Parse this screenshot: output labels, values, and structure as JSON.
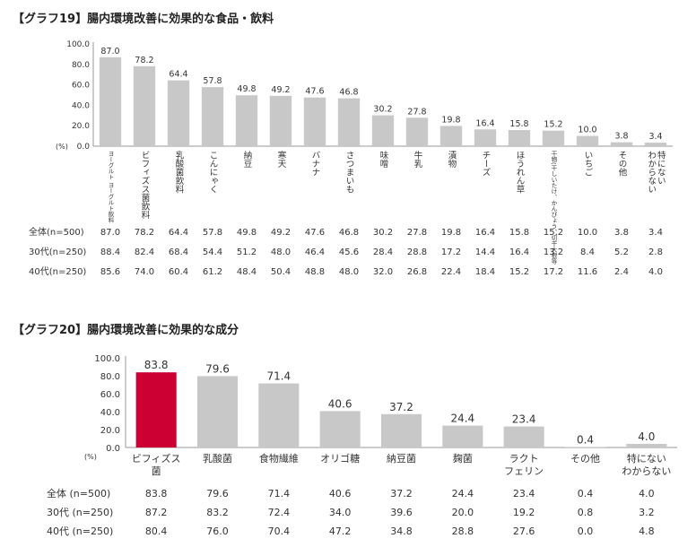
{
  "chart_data": [
    {
      "type": "bar",
      "title": "【グラフ19】腸内環境改善に効果的な食品・飲料",
      "ylim": [
        0,
        100
      ],
      "yticks": [
        "100.0",
        "80.0",
        "60.0",
        "40.0",
        "20.0",
        "0.0"
      ],
      "yunit": "(%)",
      "grid": false,
      "categories": [
        "ヨーグルト ヨーグルト飲料",
        "ビフィズス菌飲料",
        "乳酸菌飲料",
        "こんにゃく",
        "納豆",
        "寒天",
        "バナナ",
        "さつまいも",
        "味噌",
        "牛乳",
        "漬物",
        "チーズ",
        "ほうれん草",
        "干物(干しいたけ、かんぴょう、切干大根等",
        "いちご",
        "その他",
        "特にない わからない"
      ],
      "values": [
        87.0,
        78.2,
        64.4,
        57.8,
        49.8,
        49.2,
        47.6,
        46.8,
        30.2,
        27.8,
        19.8,
        16.4,
        15.8,
        15.2,
        10.0,
        3.8,
        3.4
      ],
      "value_labels": [
        "87.0",
        "78.2",
        "64.4",
        "57.8",
        "49.8",
        "49.2",
        "47.6",
        "46.8",
        "30.2",
        "27.8",
        "19.8",
        "16.4",
        "15.8",
        "15.2",
        "10.0",
        "3.8",
        "3.4"
      ],
      "bar_color": "#c8c8c8",
      "table": [
        {
          "label": "全体(n=500)",
          "values": [
            "87.0",
            "78.2",
            "64.4",
            "57.8",
            "49.8",
            "49.2",
            "47.6",
            "46.8",
            "30.2",
            "27.8",
            "19.8",
            "16.4",
            "15.8",
            "15.2",
            "10.0",
            "3.8",
            "3.4"
          ]
        },
        {
          "label": "30代(n=250)",
          "values": [
            "88.4",
            "82.4",
            "68.4",
            "54.4",
            "51.2",
            "48.0",
            "46.4",
            "45.6",
            "28.4",
            "28.8",
            "17.2",
            "14.4",
            "16.4",
            "13.2",
            "8.4",
            "5.2",
            "2.8"
          ]
        },
        {
          "label": "40代(n=250)",
          "values": [
            "85.6",
            "74.0",
            "60.4",
            "61.2",
            "48.4",
            "50.4",
            "48.8",
            "48.0",
            "32.0",
            "26.8",
            "22.4",
            "18.4",
            "15.2",
            "17.2",
            "11.6",
            "2.4",
            "4.0"
          ]
        }
      ]
    },
    {
      "type": "bar",
      "title": "【グラフ20】腸内環境改善に効果的な成分",
      "ylim": [
        0,
        100
      ],
      "yticks": [
        "100.0",
        "80.0",
        "60.0",
        "40.0",
        "20.0",
        "0.0"
      ],
      "yunit": "(%)",
      "grid": false,
      "categories": [
        "ビフィズス 菌",
        "乳酸菌",
        "食物繊維",
        "オリゴ糖",
        "納豆菌",
        "麹菌",
        "ラクト フェリン",
        "その他",
        "特にない わからない"
      ],
      "values": [
        83.8,
        79.6,
        71.4,
        40.6,
        37.2,
        24.4,
        23.4,
        0.4,
        4.0
      ],
      "value_labels": [
        "83.8",
        "79.6",
        "71.4",
        "40.6",
        "37.2",
        "24.4",
        "23.4",
        "0.4",
        "4.0"
      ],
      "bar_color": "#c8c8c8",
      "highlight_color": "#cc0033",
      "highlight_index": 0,
      "table": [
        {
          "label": "全体 (n=500)",
          "values": [
            "83.8",
            "79.6",
            "71.4",
            "40.6",
            "37.2",
            "24.4",
            "23.4",
            "0.4",
            "4.0"
          ]
        },
        {
          "label": "30代 (n=250)",
          "values": [
            "87.2",
            "83.2",
            "72.4",
            "34.0",
            "39.6",
            "20.0",
            "19.2",
            "0.8",
            "3.2"
          ]
        },
        {
          "label": "40代 (n=250)",
          "values": [
            "80.4",
            "76.0",
            "70.4",
            "47.2",
            "34.8",
            "28.8",
            "27.6",
            "0.0",
            "4.8"
          ]
        }
      ]
    }
  ]
}
